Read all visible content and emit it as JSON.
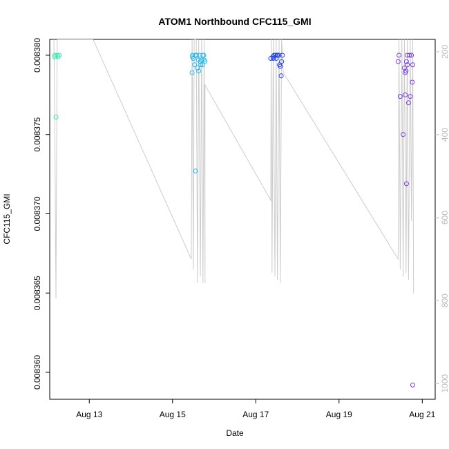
{
  "chart_data": {
    "type": "scatter",
    "title": "ATOM1 Northbound CFC115_GMI",
    "x_label": "Date",
    "y_label": "CFC115_GMI",
    "xlim": [
      12.05,
      21.31
    ],
    "xticks": [
      {
        "value": 13,
        "label": "Aug 13"
      },
      {
        "value": 15,
        "label": "Aug 15"
      },
      {
        "value": 17,
        "label": "Aug 17"
      },
      {
        "value": 19,
        "label": "Aug 19"
      },
      {
        "value": 21,
        "label": "Aug 21"
      }
    ],
    "ylim": [
      0.0083583,
      0.008381
    ],
    "yticks": [
      {
        "value": 0.00836,
        "label": "0.008360"
      },
      {
        "value": 0.008365,
        "label": "0.008365"
      },
      {
        "value": 0.00837,
        "label": "0.008370"
      },
      {
        "value": 0.008375,
        "label": "0.008375"
      },
      {
        "value": 0.00838,
        "label": "0.008380"
      }
    ],
    "y2lim": [
      1038,
      170
    ],
    "y2ticks": [
      200,
      400,
      600,
      800,
      1000
    ],
    "y2color": "#bbbbbb",
    "series": [
      {
        "type": "line",
        "axis": "y2",
        "color": "#cccccc",
        "x": [
          12.15,
          12.17,
          12.2,
          12.23,
          12.28,
          13.09,
          15.45,
          15.47,
          15.5,
          15.52,
          15.57,
          15.6,
          15.63,
          15.67,
          15.7,
          15.73,
          15.76,
          15.78,
          15.78,
          17.36,
          17.37,
          17.39,
          17.42,
          17.46,
          17.49,
          17.52,
          17.56,
          17.59,
          17.62,
          17.66,
          20.42,
          20.44,
          20.47,
          20.51,
          20.54,
          20.57,
          20.61,
          20.64,
          20.67,
          20.71,
          20.74,
          20.77,
          20.79
        ],
        "values": [
          170,
          333,
          795,
          170,
          170,
          170,
          700,
          170,
          725,
          170,
          170,
          758,
          170,
          742,
          170,
          758,
          170,
          758,
          280,
          558,
          170,
          733,
          170,
          742,
          170,
          750,
          170,
          758,
          170,
          250,
          700,
          170,
          725,
          170,
          742,
          170,
          733,
          170,
          750,
          170,
          608,
          170,
          783
        ]
      },
      {
        "type": "scatter",
        "color": "#33e8b0",
        "x": [
          12.17,
          12.23,
          12.28,
          12.17,
          12.25,
          12.2
        ],
        "values": [
          0.00838,
          0.00838,
          0.00838,
          0.0083799,
          0.0083799,
          0.0083761
        ]
      },
      {
        "type": "scatter",
        "color": "#22b8ee",
        "x": [
          15.47,
          15.48,
          15.5,
          15.53,
          15.55,
          15.58,
          15.6,
          15.62,
          15.63,
          15.65,
          15.67,
          15.68,
          15.7,
          15.72,
          15.73,
          15.75,
          15.76,
          15.78,
          15.48,
          15.55
        ],
        "values": [
          0.0083789,
          0.00838,
          0.0083798,
          0.0083794,
          0.0083727,
          0.00838,
          0.0083792,
          0.0083797,
          0.008379,
          0.00838,
          0.0083796,
          0.0083794,
          0.0083797,
          0.0083794,
          0.00838,
          0.00838,
          0.0083797,
          0.0083796,
          0.0083799,
          0.00838
        ]
      },
      {
        "type": "scatter",
        "color": "#1f3fe8",
        "x": [
          17.36,
          17.41,
          17.44,
          17.47,
          17.49,
          17.52,
          17.56,
          17.57,
          17.59,
          17.61,
          17.62,
          17.64,
          17.42,
          17.51
        ],
        "values": [
          0.0083798,
          0.0083799,
          0.00838,
          0.00838,
          0.0083798,
          0.00838,
          0.00838,
          0.0083794,
          0.0083793,
          0.0083787,
          0.0083796,
          0.00838,
          0.0083798,
          0.00838
        ]
      },
      {
        "type": "scatter",
        "color": "#7a3ae6",
        "x": [
          20.42,
          20.44,
          20.47,
          20.54,
          20.57,
          20.59,
          20.59,
          20.61,
          20.62,
          20.62,
          20.64,
          20.64,
          20.67,
          20.69,
          20.71,
          20.74,
          20.76,
          20.77,
          20.77
        ],
        "values": [
          0.0083796,
          0.00838,
          0.0083774,
          0.008375,
          0.0083792,
          0.0083789,
          0.0083775,
          0.008379,
          0.0083719,
          0.0083796,
          0.00838,
          0.0083794,
          0.008377,
          0.00838,
          0.0083774,
          0.00838,
          0.0083783,
          0.0083794,
          0.0083592
        ]
      }
    ]
  }
}
